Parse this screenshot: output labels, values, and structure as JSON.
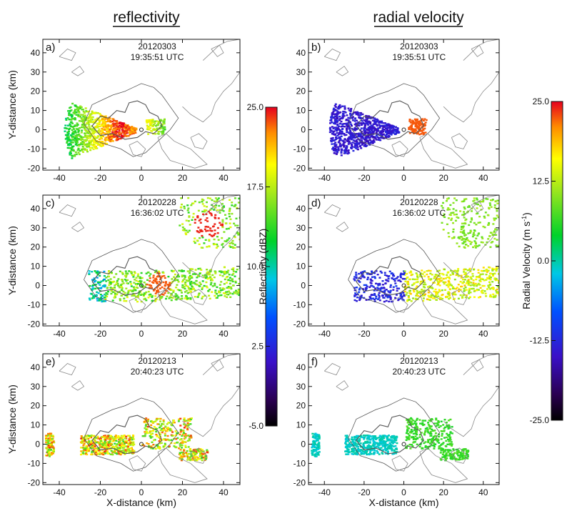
{
  "figure": {
    "left_title": "reflectivity",
    "right_title": "radial velocity"
  },
  "chart_data": [
    {
      "type": "heatmap",
      "panel": "a)",
      "date": "20120303",
      "time": "19:35:51 UTC",
      "field": "reflectivity",
      "xlabel": "",
      "ylabel": "Y-distance (km)",
      "xlim": [
        -48,
        48
      ],
      "ylim": [
        -21,
        47
      ],
      "xticks": [
        -40,
        -20,
        0,
        20,
        40
      ],
      "yticks": [
        -20,
        -10,
        0,
        10,
        20,
        30,
        40
      ],
      "echo": {
        "center_xy": [
          0,
          0
        ],
        "sector_deg": [
          155,
          205
        ],
        "range_km": 38,
        "core_km": [
          -15,
          -2
        ],
        "peak_dbz": 24
      }
    },
    {
      "type": "heatmap",
      "panel": "b)",
      "date": "20120303",
      "time": "19:35:51 UTC",
      "field": "radial velocity",
      "xlabel": "",
      "ylabel": "",
      "xlim": [
        -48,
        48
      ],
      "ylim": [
        -21,
        47
      ],
      "xticks": [
        -40,
        -20,
        0,
        20,
        40
      ],
      "yticks": [
        -20,
        -10,
        0,
        10,
        20,
        30,
        40
      ],
      "echo": {
        "inbound_ms": -17,
        "outbound_ms": 24
      }
    },
    {
      "type": "heatmap",
      "panel": "c)",
      "date": "20120228",
      "time": "16:36:02 UTC",
      "field": "reflectivity",
      "xlabel": "",
      "ylabel": "Y-distance (km)",
      "xlim": [
        -48,
        48
      ],
      "ylim": [
        -21,
        47
      ],
      "xticks": [
        -40,
        -20,
        0,
        20,
        40
      ],
      "yticks": [
        -20,
        -10,
        0,
        10,
        20,
        30,
        40
      ],
      "echo": {
        "band_km": [
          -28,
          48
        ],
        "cell_center_km": [
          32,
          32
        ],
        "peak_dbz": 24
      }
    },
    {
      "type": "heatmap",
      "panel": "d)",
      "date": "20120228",
      "time": "16:36:02 UTC",
      "field": "radial velocity",
      "xlabel": "",
      "ylabel": "",
      "xlim": [
        -48,
        48
      ],
      "ylim": [
        -21,
        47
      ],
      "xticks": [
        -40,
        -20,
        0,
        20,
        40
      ],
      "yticks": [
        -20,
        -10,
        0,
        10,
        20,
        30,
        40
      ],
      "echo": {
        "inbound_ms": -15,
        "outbound_ms": 18
      }
    },
    {
      "type": "heatmap",
      "panel": "e)",
      "date": "20120213",
      "time": "20:40:23 UTC",
      "field": "reflectivity",
      "xlabel": "X-distance (km)",
      "ylabel": "Y-distance (km)",
      "xlim": [
        -48,
        48
      ],
      "ylim": [
        -21,
        47
      ],
      "xticks": [
        -40,
        -20,
        0,
        20,
        40
      ],
      "yticks": [
        -20,
        -10,
        0,
        10,
        20,
        30,
        40
      ],
      "echo": {
        "peak_dbz": 24
      }
    },
    {
      "type": "heatmap",
      "panel": "f)",
      "date": "20120213",
      "time": "20:40:23 UTC",
      "field": "radial velocity",
      "xlabel": "X-distance (km)",
      "ylabel": "",
      "xlim": [
        -48,
        48
      ],
      "ylim": [
        -21,
        47
      ],
      "xticks": [
        -40,
        -20,
        0,
        20,
        40
      ],
      "yticks": [
        -20,
        -10,
        0,
        10,
        20,
        30,
        40
      ],
      "echo": {
        "inbound_ms": -4,
        "outbound_ms": 4
      }
    },
    {
      "type": "heatmap",
      "colorbar": "reflectivity",
      "label": "Reflectivity (dBZ)",
      "range": [
        -5.0,
        25.0
      ],
      "ticks": [
        "25.0",
        "17.5",
        "10.0",
        "2.5",
        "-5.0"
      ],
      "tick_values": [
        25.0,
        17.5,
        10.0,
        2.5,
        -5.0
      ],
      "colormap": [
        "#000000",
        "#2a0050",
        "#3a10c8",
        "#0050ff",
        "#00c8e6",
        "#00d22a",
        "#9be61e",
        "#ffff00",
        "#ff8c00",
        "#e6001e"
      ]
    },
    {
      "type": "heatmap",
      "colorbar": "radial velocity",
      "label_main": "Radial Velocity (m s",
      "label_sup": "-1",
      "label_close": ")",
      "range": [
        -25.0,
        25.0
      ],
      "ticks": [
        "25.0",
        "12.5",
        "0.0",
        "-12.5",
        "-25.0"
      ],
      "tick_values": [
        25.0,
        12.5,
        0.0,
        -12.5,
        -25.0
      ],
      "colormap": [
        "#000000",
        "#2a0050",
        "#3a10c8",
        "#0050ff",
        "#00c8e6",
        "#00d22a",
        "#9be61e",
        "#ffff00",
        "#ff8c00",
        "#e6001e"
      ]
    }
  ]
}
